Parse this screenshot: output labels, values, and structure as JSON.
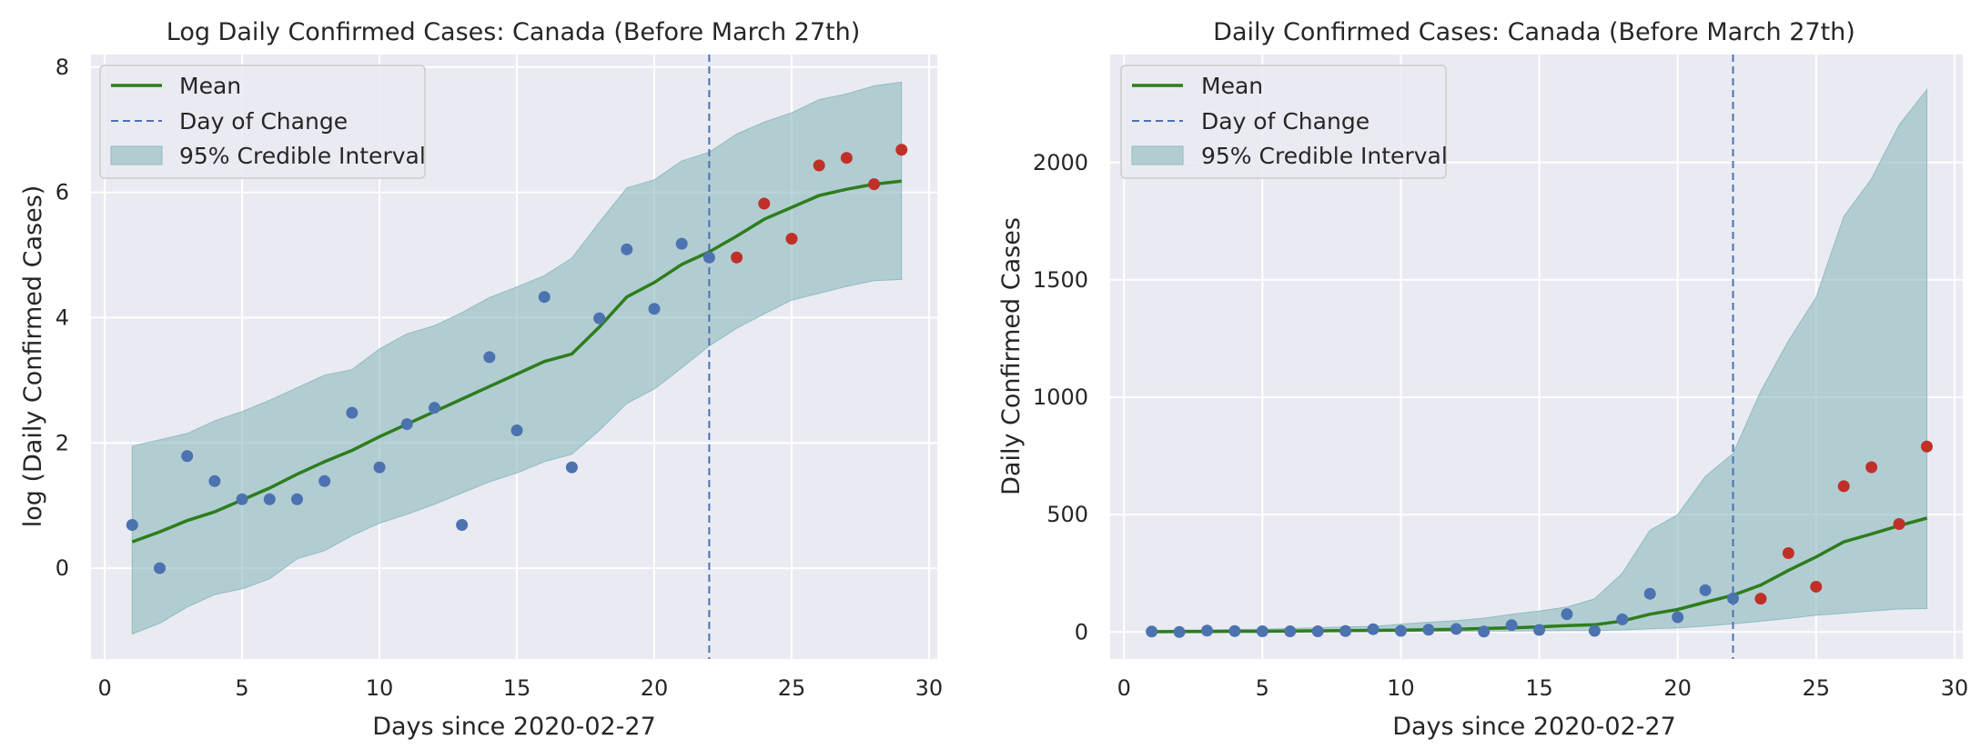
{
  "colors": {
    "background": "#eaeaf2",
    "grid": "#ffffff",
    "mean": "#2e7d1c",
    "change": "#4c72b0",
    "band": "#8fbcbf",
    "observed_before": "#4c72b0",
    "observed_after": "#c03028"
  },
  "chart_data": [
    {
      "type": "line",
      "title": "Log Daily Confirmed Cases: Canada (Before March 27th)",
      "xlabel": "Days since 2020-02-27",
      "ylabel": "log (Daily Confirmed Cases)",
      "xlim": [
        -0.5,
        30.3
      ],
      "ylim": [
        -1.45,
        8.2
      ],
      "xticks": [
        0,
        5,
        10,
        15,
        20,
        25,
        30
      ],
      "yticks": [
        0,
        2,
        4,
        6,
        8
      ],
      "grid": true,
      "legend_position": "top-left",
      "legend": [
        "Mean",
        "Day of Change",
        "95% Credible Interval"
      ],
      "day_of_change": 22,
      "days": [
        1,
        2,
        3,
        4,
        5,
        6,
        7,
        8,
        9,
        10,
        11,
        12,
        13,
        14,
        15,
        16,
        17,
        18,
        19,
        20,
        21,
        22,
        23,
        24,
        25,
        26,
        27,
        28,
        29
      ],
      "mean": [
        0.42,
        0.58,
        0.76,
        0.9,
        1.09,
        1.28,
        1.5,
        1.7,
        1.88,
        2.1,
        2.3,
        2.5,
        2.7,
        2.9,
        3.1,
        3.3,
        3.42,
        3.85,
        4.33,
        4.56,
        4.85,
        5.05,
        5.3,
        5.57,
        5.76,
        5.95,
        6.05,
        6.13,
        6.18
      ],
      "ci_lower": [
        -1.05,
        -0.88,
        -0.62,
        -0.42,
        -0.33,
        -0.17,
        0.15,
        0.28,
        0.52,
        0.72,
        0.86,
        1.02,
        1.2,
        1.38,
        1.52,
        1.7,
        1.82,
        2.2,
        2.63,
        2.86,
        3.2,
        3.55,
        3.83,
        4.06,
        4.28,
        4.39,
        4.5,
        4.59,
        4.61
      ],
      "ci_upper": [
        1.95,
        2.05,
        2.15,
        2.35,
        2.5,
        2.68,
        2.88,
        3.08,
        3.17,
        3.5,
        3.74,
        3.87,
        4.08,
        4.32,
        4.49,
        4.67,
        4.95,
        5.52,
        6.07,
        6.2,
        6.5,
        6.64,
        6.93,
        7.12,
        7.27,
        7.48,
        7.57,
        7.7,
        7.76
      ],
      "observed": [
        0.69,
        0.0,
        1.79,
        1.39,
        1.1,
        1.1,
        1.1,
        1.39,
        2.48,
        1.61,
        2.3,
        2.56,
        0.69,
        3.37,
        2.2,
        4.33,
        1.61,
        3.99,
        5.09,
        4.14,
        5.18,
        4.96,
        4.96,
        5.82,
        5.26,
        6.43,
        6.55,
        6.13,
        6.68
      ],
      "observed_split_day": 22
    },
    {
      "type": "line",
      "title": "Daily Confirmed Cases: Canada (Before March 27th)",
      "xlabel": "Days since 2020-02-27",
      "ylabel": "Daily Confirmed Cases",
      "xlim": [
        -0.5,
        30.3
      ],
      "ylim": [
        -115,
        2460
      ],
      "xticks": [
        0,
        5,
        10,
        15,
        20,
        25,
        30
      ],
      "yticks": [
        0,
        500,
        1000,
        1500,
        2000
      ],
      "grid": true,
      "legend_position": "top-left",
      "legend": [
        "Mean",
        "Day of Change",
        "95% Credible Interval"
      ],
      "day_of_change": 22,
      "days": [
        1,
        2,
        3,
        4,
        5,
        6,
        7,
        8,
        9,
        10,
        11,
        12,
        13,
        14,
        15,
        16,
        17,
        18,
        19,
        20,
        21,
        22,
        23,
        24,
        25,
        26,
        27,
        28,
        29
      ],
      "mean": [
        1,
        2,
        2,
        3,
        3,
        4,
        5,
        6,
        7,
        8,
        10,
        12,
        15,
        18,
        22,
        27,
        31,
        47,
        76,
        96,
        127,
        157,
        200,
        262,
        320,
        384,
        418,
        453,
        485
      ],
      "ci_lower": [
        0,
        0,
        0,
        1,
        1,
        1,
        1,
        2,
        2,
        2,
        3,
        3,
        4,
        4,
        5,
        6,
        6,
        9,
        14,
        18,
        25,
        35,
        46,
        58,
        72,
        80,
        90,
        98,
        100
      ],
      "ci_upper": [
        7,
        8,
        9,
        11,
        12,
        15,
        18,
        22,
        24,
        33,
        42,
        48,
        59,
        75,
        89,
        106,
        141,
        250,
        433,
        500,
        663,
        760,
        1025,
        1240,
        1425,
        1770,
        1930,
        2160,
        2310
      ],
      "observed": [
        2,
        0,
        6,
        4,
        3,
        3,
        3,
        4,
        12,
        5,
        10,
        13,
        2,
        29,
        9,
        76,
        5,
        54,
        163,
        63,
        178,
        143,
        142,
        336,
        193,
        621,
        702,
        460,
        790
      ],
      "observed_split_day": 22
    }
  ]
}
